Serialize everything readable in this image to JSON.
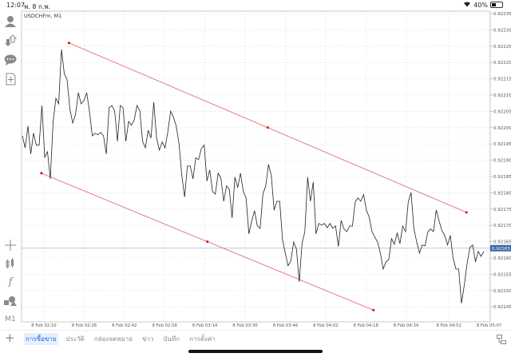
{
  "status_bar": {
    "time": "12:07",
    "date": "พ. 8 ก.พ.",
    "battery": "40%",
    "battery_level": 0.4
  },
  "chart_title": "USDCHFm, M1",
  "left_toolbar": {
    "top_icons": [
      "account-icon",
      "trade-arrows-icon",
      "chat-icon",
      "new-document-icon"
    ],
    "bottom_icons": [
      "crosshair-icon",
      "indicators-icon",
      "function-icon",
      "objects-icon"
    ],
    "timeframe": "M1"
  },
  "bottom_tabs": {
    "items": [
      {
        "label": "การซื้อขาย",
        "active": true
      },
      {
        "label": "ประวัติ",
        "active": false
      },
      {
        "label": "กล่องจดหมาย",
        "active": false
      },
      {
        "label": "ข่าว",
        "active": false
      },
      {
        "label": "บันทึก",
        "active": false
      },
      {
        "label": "การตั้งค่า",
        "active": false
      }
    ]
  },
  "colors": {
    "line": "#222222",
    "trendline": "#e06060",
    "trend_point": "#cc1111",
    "price_marker": "#3b6aa8",
    "current_line": "#9fb6d6",
    "grid": "#dddddd"
  },
  "chart_data": {
    "type": "line",
    "symbol": "USDCHFm",
    "timeframe": "M1",
    "x_ticks": [
      "8 Feb 02:10",
      "8 Feb 02:26",
      "8 Feb 02:42",
      "8 Feb 02:58",
      "8 Feb 03:14",
      "8 Feb 03:30",
      "8 Feb 03:46",
      "8 Feb 04:02",
      "8 Feb 04:18",
      "8 Feb 04:34",
      "8 Feb 04:51",
      "8 Feb 05:07"
    ],
    "y_ticks": [
      "0.92235",
      "0.92230",
      "0.92225",
      "0.92220",
      "0.92215",
      "0.92210",
      "0.92205",
      "0.92200",
      "0.92195",
      "0.92190",
      "0.92185",
      "0.92180",
      "0.92175",
      "0.92170",
      "0.92165",
      "0.92160",
      "0.92155",
      "0.92150",
      "0.92145"
    ],
    "ylim": [
      0.92141,
      0.92238
    ],
    "current_price": "0.92163",
    "grid": true,
    "values": [
      0.921975,
      0.921938,
      0.922005,
      0.921919,
      0.921983,
      0.921946,
      0.921946,
      0.922068,
      0.921909,
      0.921926,
      0.921843,
      0.922017,
      0.92209,
      0.922073,
      0.92224,
      0.922166,
      0.922147,
      0.922056,
      0.922014,
      0.922041,
      0.922107,
      0.922073,
      0.922083,
      0.922107,
      0.922049,
      0.921975,
      0.921983,
      0.921978,
      0.921985,
      0.921975,
      0.921919,
      0.922061,
      0.922068,
      0.922051,
      0.921958,
      0.922068,
      0.922061,
      0.921958,
      0.922019,
      0.922007,
      0.922024,
      0.922068,
      0.922051,
      0.921958,
      0.921938,
      0.921992,
      0.921968,
      0.922078,
      0.921968,
      0.921931,
      0.921956,
      0.921938,
      0.921987,
      0.922051,
      0.922032,
      0.922005,
      0.921951,
      0.921853,
      0.921787,
      0.921882,
      0.921882,
      0.921843,
      0.921907,
      0.921902,
      0.921936,
      0.921946,
      0.921836,
      0.92187,
      0.921804,
      0.921796,
      0.92186,
      0.921845,
      0.921774,
      0.921821,
      0.921811,
      0.921723,
      0.921848,
      0.921816,
      0.92186,
      0.921804,
      0.921784,
      0.921674,
      0.921713,
      0.921745,
      0.921698,
      0.921691,
      0.921796,
      0.921821,
      0.921887,
      0.921853,
      0.921747,
      0.921774,
      0.921774,
      0.921657,
      0.921615,
      0.921576,
      0.921591,
      0.921649,
      0.921627,
      0.921527,
      0.921644,
      0.921681,
      0.921848,
      0.921774,
      0.921833,
      0.921674,
      0.921706,
      0.921701,
      0.921706,
      0.921693,
      0.921706,
      0.921691,
      0.921698,
      0.921635,
      0.921715,
      0.921689,
      0.921681,
      0.921698,
      0.921698,
      0.921772,
      0.921784,
      0.921774,
      0.921794,
      0.921747,
      0.921725,
      0.921681,
      0.921664,
      0.921649,
      0.921615,
      0.921566,
      0.921588,
      0.921595,
      0.921659,
      0.921642,
      0.921676,
      0.921644,
      0.921698,
      0.921681,
      0.921774,
      0.921801,
      0.921689,
      0.921649,
      0.921615,
      0.92164,
      0.921637,
      0.921681,
      0.921689,
      0.921681,
      0.921747,
      0.921713,
      0.921684,
      0.921669,
      0.92164,
      0.921669,
      0.9216,
      0.921566,
      0.921566,
      0.921461,
      0.921517,
      0.921583,
      0.921632,
      0.92164,
      0.921588,
      0.92162,
      0.921605,
      0.92162
    ],
    "trendlines": [
      {
        "points": [
          {
            "time": "02:20",
            "price": 0.92226
          },
          {
            "time": "04:58",
            "price": 0.92174
          }
        ],
        "mid": {
          "time": "03:39",
          "price": 0.922
        }
      },
      {
        "points": [
          {
            "time": "02:09",
            "price": 0.92186
          },
          {
            "time": "04:21",
            "price": 0.92144
          }
        ],
        "mid": {
          "time": "03:15",
          "price": 0.92165
        }
      }
    ]
  }
}
